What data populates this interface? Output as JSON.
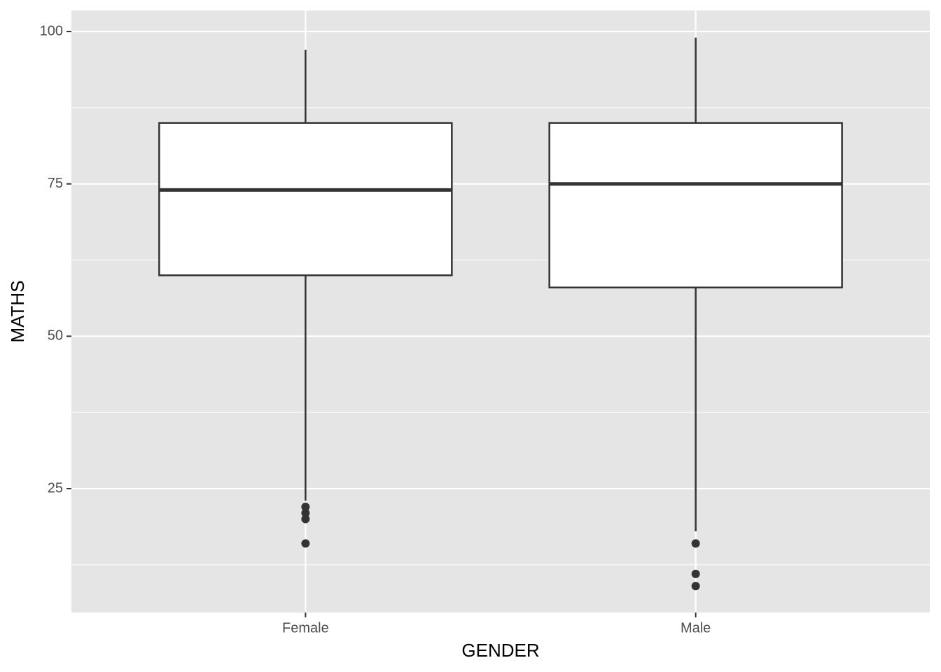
{
  "chart_data": {
    "type": "box",
    "x_label": "GENDER",
    "y_label": "MATHS",
    "categories": [
      "Female",
      "Male"
    ],
    "boxes": [
      {
        "min": 23,
        "q1": 60,
        "median": 74,
        "q3": 85,
        "max": 97,
        "outliers": [
          22,
          21,
          20,
          16
        ]
      },
      {
        "min": 18,
        "q1": 58,
        "median": 75,
        "q3": 85,
        "max": 99,
        "outliers": [
          16,
          11,
          9
        ]
      }
    ],
    "box_fill": "#ffffff",
    "box_stroke": "#333333",
    "panel_color": "#e5e5e5",
    "ylim": [
      4.67,
      103.45
    ],
    "yticks": [
      25,
      50,
      75,
      100
    ],
    "minor_yticks": [
      12.5,
      37.5,
      62.5,
      87.5
    ],
    "grid": true
  }
}
